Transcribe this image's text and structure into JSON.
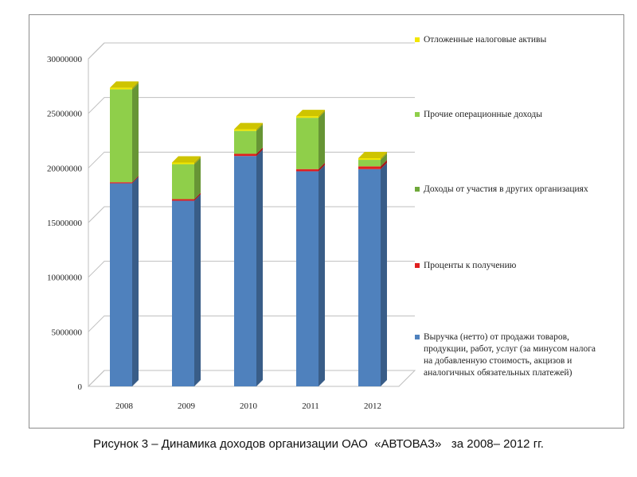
{
  "chart_data": {
    "type": "bar",
    "stacked": true,
    "three_d": true,
    "categories": [
      "2008",
      "2009",
      "2010",
      "2011",
      "2012"
    ],
    "y_ticks": [
      "0",
      "5000000",
      "10000000",
      "15000000",
      "20000000",
      "25000000",
      "30000000"
    ],
    "ylim": [
      0,
      30000000
    ],
    "grid": true,
    "legend_position": "right",
    "series": [
      {
        "name_lines": [
          "Выручка (нетто) от продажи товаров,",
          "продукции, работ, услуг (за минусом налога",
          "на добавленную стоимость, акцизов и",
          "аналогичных обязательных платежей)"
        ],
        "color": "#4f81bd",
        "values": [
          18600000,
          17000000,
          21100000,
          19700000,
          19900000
        ]
      },
      {
        "name_lines": [
          "Проценты к получению"
        ],
        "color": "#e02020",
        "values": [
          100000,
          150000,
          200000,
          200000,
          250000
        ]
      },
      {
        "name_lines": [
          "Доходы от участия в других организациях"
        ],
        "color": "#6fa83a",
        "values": [
          0,
          0,
          0,
          0,
          0
        ]
      },
      {
        "name_lines": [
          "Прочие операционные доходы"
        ],
        "color": "#8fcf4a",
        "values": [
          8500000,
          3200000,
          2100000,
          4700000,
          600000
        ]
      },
      {
        "name_lines": [
          "Отложенные налоговые активы"
        ],
        "color": "#f2e600",
        "values": [
          150000,
          150000,
          150000,
          150000,
          150000
        ]
      }
    ]
  },
  "caption": "Рисунок 3 – Динамика доходов организации ОАО  «АВТОВАЗ»   за 2008– 2012 гг."
}
